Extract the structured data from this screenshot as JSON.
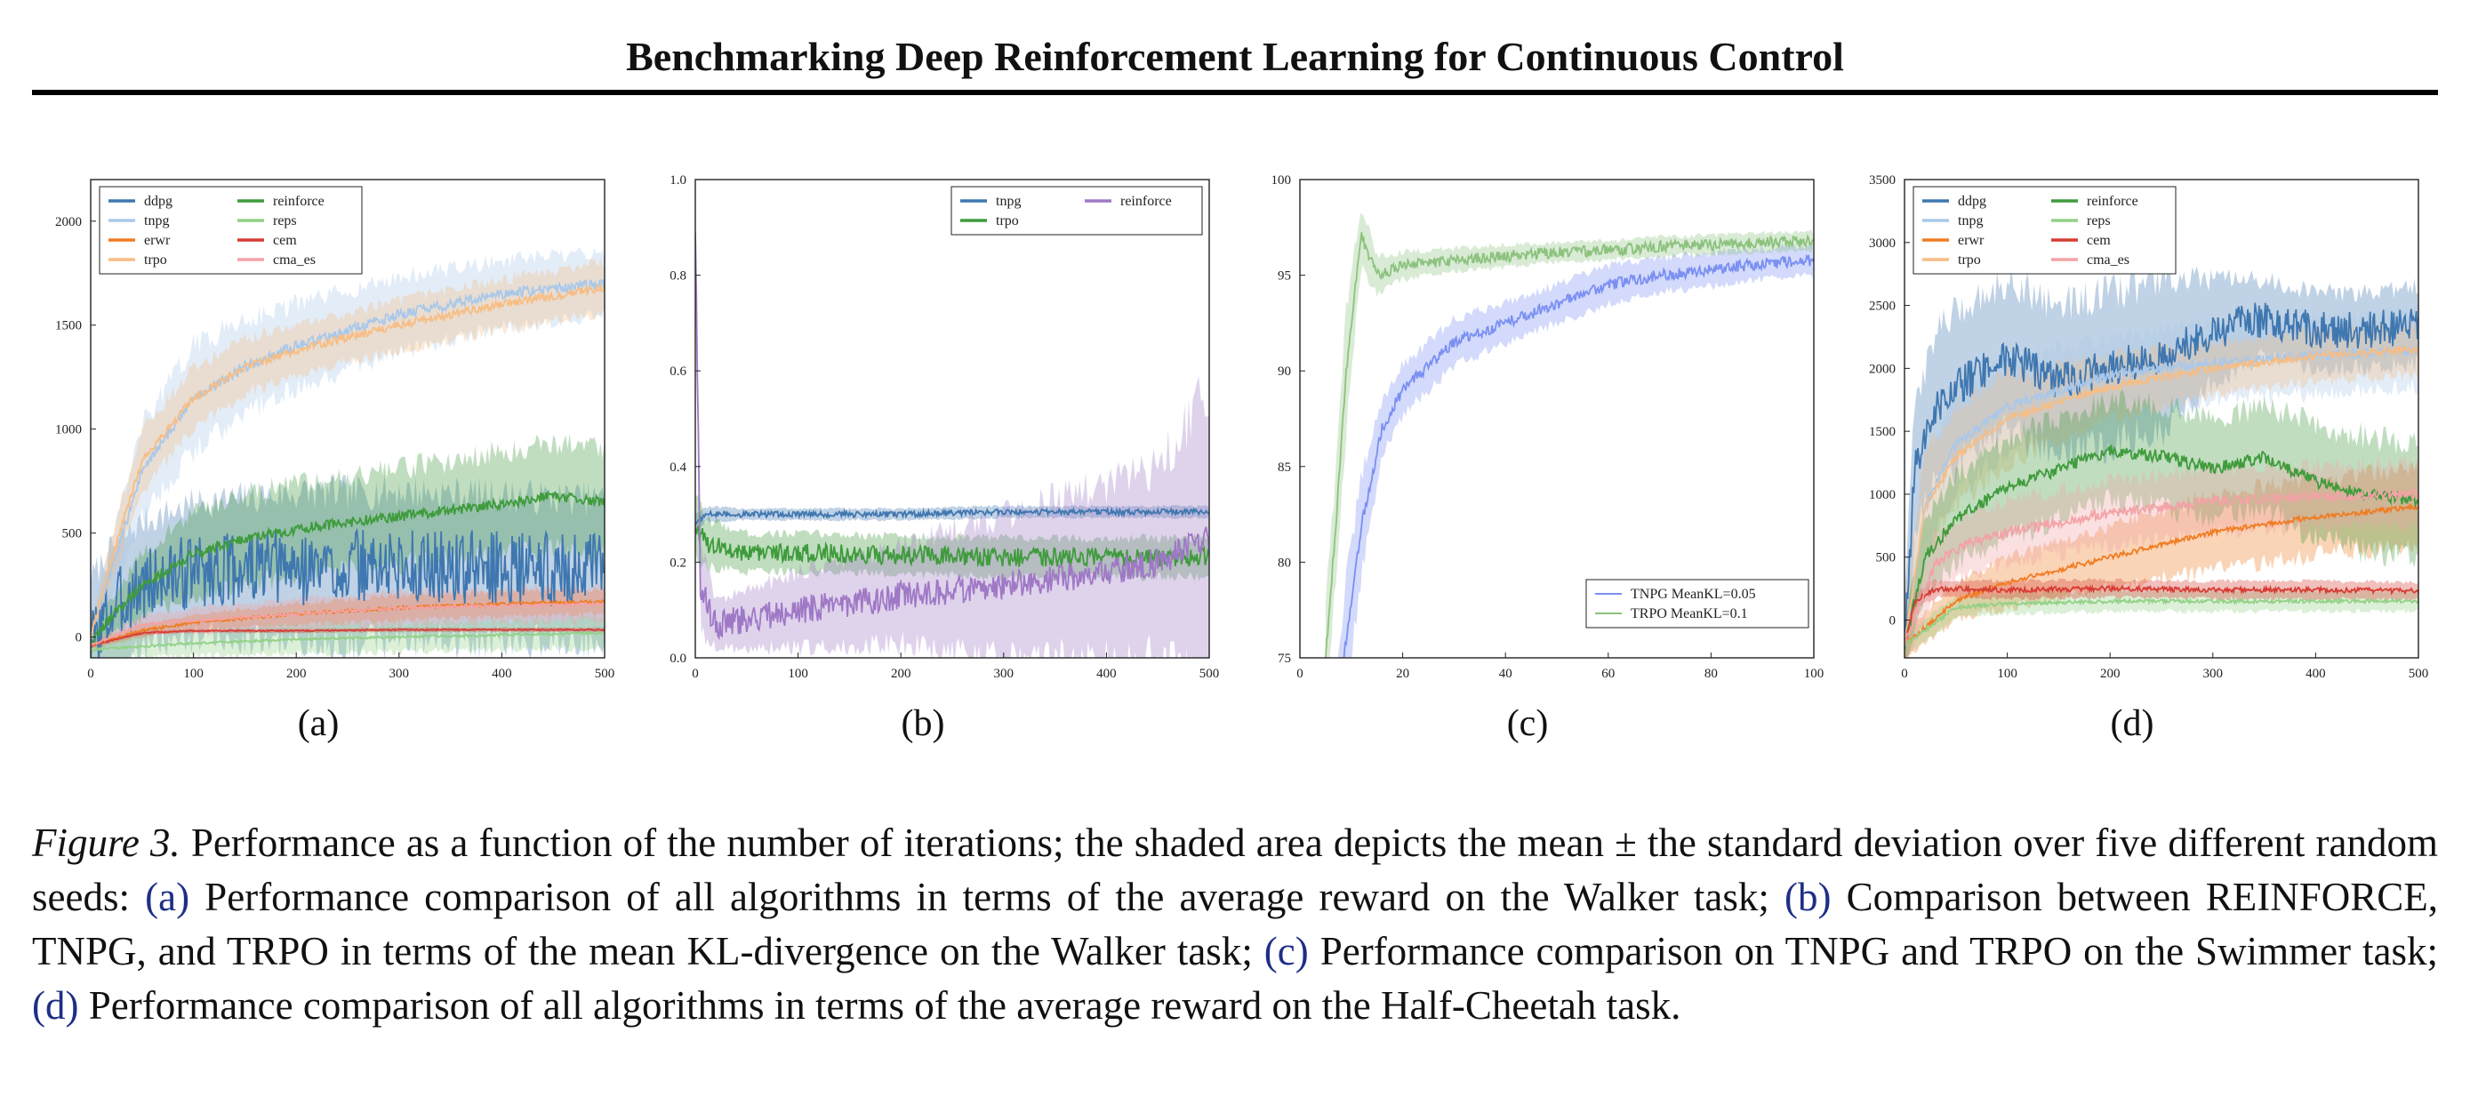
{
  "header": {
    "title": "Benchmarking Deep Reinforcement Learning for Continuous Control"
  },
  "colors": {
    "ddpg": "#3f77b0",
    "tnpg": "#a9c8ea",
    "erwr": "#f07c22",
    "trpo": "#f7bd83",
    "reinforce": "#3f9b3c",
    "reps": "#92d186",
    "cem": "#d63c34",
    "cma_es": "#f3a2a6",
    "reinforce_b": "#9f78c6",
    "tnpg_c": "#7a8ff2",
    "trpo_c": "#8cc27e"
  },
  "panels": [
    {
      "id": "a",
      "sublabel": "(a)"
    },
    {
      "id": "b",
      "sublabel": "(b)"
    },
    {
      "id": "c",
      "sublabel": "(c)"
    },
    {
      "id": "d",
      "sublabel": "(d)"
    }
  ],
  "caption": {
    "label": "Figure 3.",
    "text1": " Performance as a function of the number of iterations; the shaded area depicts the mean ± the standard deviation over five different random seeds: ",
    "ref_a": "(a)",
    "text2": " Performance comparison of all algorithms in terms of the average reward on the Walker task; ",
    "ref_b": "(b)",
    "text3": " Comparison between REINFORCE, TNPG, and TRPO in terms of the mean KL-divergence on the Walker task; ",
    "ref_c": "(c)",
    "text4": " Performance comparison on TNPG and TRPO on the Swimmer task; ",
    "ref_d": "(d)",
    "text5": " Performance comparison of all algorithms in terms of the average reward on the Half-Cheetah task."
  },
  "chart_data": [
    {
      "id": "a",
      "type": "line",
      "xlim": [
        0,
        500
      ],
      "ylim": [
        -100,
        2200
      ],
      "xticks": [
        "0",
        "100",
        "200",
        "300",
        "400",
        "500"
      ],
      "xtick_values": [
        0,
        100,
        200,
        300,
        400,
        500
      ],
      "yticks": [
        "0",
        "500",
        "1000",
        "1500",
        "2000"
      ],
      "ytick_values": [
        0,
        500,
        1000,
        1500,
        2000
      ],
      "legend": {
        "position": "top-left",
        "columns": 2,
        "entries": [
          "ddpg",
          "tnpg",
          "erwr",
          "trpo",
          "reinforce",
          "reps",
          "cem",
          "cma_es"
        ]
      },
      "series": [
        {
          "name": "ddpg",
          "color": "#3f77b0",
          "x": [
            0,
            25,
            50,
            100,
            150,
            200,
            300,
            400,
            500
          ],
          "y": [
            -20,
            150,
            250,
            320,
            330,
            330,
            340,
            330,
            320
          ],
          "band": [
            300,
            300,
            300,
            320,
            340,
            360,
            360,
            350,
            340
          ],
          "noise": 180
        },
        {
          "name": "tnpg",
          "color": "#a9c8ea",
          "x": [
            0,
            25,
            50,
            100,
            150,
            200,
            300,
            400,
            500
          ],
          "y": [
            0,
            400,
            800,
            1150,
            1300,
            1400,
            1550,
            1650,
            1700
          ],
          "band": [
            60,
            150,
            220,
            250,
            230,
            200,
            180,
            160,
            150
          ],
          "noise": 25
        },
        {
          "name": "erwr",
          "color": "#f07c22",
          "x": [
            0,
            50,
            100,
            200,
            300,
            400,
            500
          ],
          "y": [
            -40,
            30,
            70,
            110,
            140,
            160,
            170
          ],
          "band": [
            20,
            30,
            40,
            50,
            60,
            60,
            60
          ],
          "noise": 8
        },
        {
          "name": "trpo",
          "color": "#f7bd83",
          "x": [
            0,
            25,
            50,
            100,
            150,
            200,
            300,
            400,
            500
          ],
          "y": [
            0,
            450,
            850,
            1150,
            1300,
            1380,
            1500,
            1600,
            1680
          ],
          "band": [
            60,
            120,
            150,
            140,
            130,
            120,
            120,
            120,
            120
          ],
          "noise": 20
        },
        {
          "name": "reinforce",
          "color": "#3f9b3c",
          "x": [
            0,
            25,
            50,
            100,
            150,
            200,
            300,
            400,
            450,
            500
          ],
          "y": [
            -20,
            120,
            250,
            400,
            470,
            520,
            580,
            640,
            680,
            650
          ],
          "band": [
            40,
            100,
            150,
            200,
            220,
            220,
            230,
            250,
            260,
            260
          ],
          "noise": 25
        },
        {
          "name": "reps",
          "color": "#92d186",
          "x": [
            0,
            100,
            200,
            300,
            400,
            500
          ],
          "y": [
            -60,
            -30,
            -10,
            0,
            10,
            20
          ],
          "band": [
            40,
            60,
            70,
            70,
            70,
            70
          ],
          "noise": 6
        },
        {
          "name": "cem",
          "color": "#d63c34",
          "x": [
            0,
            50,
            100,
            200,
            300,
            400,
            500
          ],
          "y": [
            -40,
            20,
            30,
            30,
            35,
            35,
            35
          ],
          "band": [
            10,
            10,
            10,
            10,
            10,
            10,
            10
          ],
          "noise": 3
        },
        {
          "name": "cma_es",
          "color": "#f3a2a6",
          "x": [
            0,
            50,
            100,
            200,
            300,
            400,
            500
          ],
          "y": [
            -40,
            60,
            80,
            110,
            140,
            150,
            160
          ],
          "band": [
            20,
            40,
            60,
            70,
            80,
            80,
            80
          ],
          "noise": 6
        }
      ]
    },
    {
      "id": "b",
      "type": "line",
      "xlim": [
        0,
        500
      ],
      "ylim": [
        0,
        1.0
      ],
      "xticks": [
        "0",
        "100",
        "200",
        "300",
        "400",
        "500"
      ],
      "xtick_values": [
        0,
        100,
        200,
        300,
        400,
        500
      ],
      "yticks": [
        "0.0",
        "0.2",
        "0.4",
        "0.6",
        "0.8",
        "1.0"
      ],
      "ytick_values": [
        0,
        0.2,
        0.4,
        0.6,
        0.8,
        1.0
      ],
      "legend": {
        "position": "top-right",
        "columns": 2,
        "entries": [
          "tnpg",
          "trpo",
          "reinforce"
        ]
      },
      "series": [
        {
          "name": "tnpg",
          "color": "#3f77b0",
          "x": [
            0,
            10,
            50,
            100,
            200,
            300,
            400,
            500
          ],
          "y": [
            0.28,
            0.3,
            0.3,
            0.3,
            0.3,
            0.305,
            0.305,
            0.305
          ],
          "band": [
            0.02,
            0.015,
            0.012,
            0.012,
            0.012,
            0.012,
            0.012,
            0.012
          ],
          "noise": 0.006
        },
        {
          "name": "trpo",
          "color": "#3f9b3c",
          "x": [
            0,
            10,
            50,
            100,
            200,
            300,
            400,
            500
          ],
          "y": [
            0.28,
            0.24,
            0.22,
            0.22,
            0.215,
            0.21,
            0.21,
            0.21
          ],
          "band": [
            0.06,
            0.05,
            0.04,
            0.04,
            0.04,
            0.04,
            0.04,
            0.04
          ],
          "noise": 0.02
        },
        {
          "name": "reinforce",
          "color": "#9f78c6",
          "x": [
            0,
            5,
            20,
            50,
            100,
            200,
            300,
            400,
            450,
            500
          ],
          "y": [
            0.9,
            0.15,
            0.07,
            0.08,
            0.1,
            0.13,
            0.15,
            0.18,
            0.2,
            0.25
          ],
          "band": [
            0.1,
            0.1,
            0.05,
            0.06,
            0.08,
            0.1,
            0.15,
            0.18,
            0.2,
            0.3
          ],
          "noise": 0.03
        }
      ]
    },
    {
      "id": "c",
      "type": "line",
      "xlim": [
        0,
        100
      ],
      "ylim": [
        75,
        100
      ],
      "xticks": [
        "0",
        "20",
        "40",
        "60",
        "80",
        "100"
      ],
      "xtick_values": [
        0,
        20,
        40,
        60,
        80,
        100
      ],
      "yticks": [
        "75",
        "80",
        "85",
        "90",
        "95",
        "100"
      ],
      "ytick_values": [
        75,
        80,
        85,
        90,
        95,
        100
      ],
      "legend": {
        "position": "bottom-right",
        "columns": 1,
        "entries": [
          "TNPG MeanKL=0.05",
          "TRPO MeanKL=0.1"
        ]
      },
      "series": [
        {
          "name": "TNPG MeanKL=0.05",
          "color": "#7a8ff2",
          "x": [
            7,
            9,
            12,
            16,
            20,
            30,
            40,
            50,
            60,
            70,
            80,
            90,
            100
          ],
          "y": [
            72,
            76,
            82,
            87,
            89,
            91.5,
            92.5,
            93.5,
            94.5,
            95,
            95.3,
            95.6,
            95.8
          ],
          "band": [
            2,
            3,
            2.5,
            1.5,
            1.3,
            1.2,
            1.1,
            1,
            1,
            0.9,
            0.9,
            0.8,
            0.8
          ],
          "noise": 0.3
        },
        {
          "name": "TRPO MeanKL=0.1",
          "color": "#8cc27e",
          "x": [
            5,
            7,
            9,
            11,
            12,
            15,
            20,
            30,
            40,
            50,
            60,
            70,
            80,
            90,
            100
          ],
          "y": [
            75,
            82,
            90,
            95,
            97,
            95,
            95.5,
            95.8,
            96,
            96.2,
            96.3,
            96.5,
            96.6,
            96.7,
            96.8
          ],
          "band": [
            3,
            3,
            3,
            2,
            1.5,
            1,
            0.7,
            0.6,
            0.6,
            0.5,
            0.5,
            0.5,
            0.5,
            0.5,
            0.5
          ],
          "noise": 0.3
        }
      ]
    },
    {
      "id": "d",
      "type": "line",
      "xlim": [
        0,
        500
      ],
      "ylim": [
        -300,
        3500
      ],
      "xticks": [
        "0",
        "100",
        "200",
        "300",
        "400",
        "500"
      ],
      "xtick_values": [
        0,
        100,
        200,
        300,
        400,
        500
      ],
      "yticks": [
        "0",
        "500",
        "1000",
        "1500",
        "2000",
        "2500",
        "3000",
        "3500"
      ],
      "ytick_values": [
        0,
        500,
        1000,
        1500,
        2000,
        2500,
        3000,
        3500
      ],
      "legend": {
        "position": "top-left",
        "columns": 2,
        "entries": [
          "ddpg",
          "tnpg",
          "erwr",
          "trpo",
          "reinforce",
          "reps",
          "cem",
          "cma_es"
        ]
      },
      "series": [
        {
          "name": "ddpg",
          "color": "#3f77b0",
          "x": [
            0,
            10,
            30,
            60,
            100,
            150,
            200,
            250,
            300,
            350,
            400,
            450,
            500
          ],
          "y": [
            -200,
            1200,
            1700,
            1900,
            2100,
            1900,
            2000,
            2100,
            2300,
            2400,
            2300,
            2300,
            2350
          ],
          "band": [
            400,
            500,
            600,
            600,
            600,
            600,
            600,
            600,
            400,
            300,
            300,
            300,
            300
          ],
          "noise": 150
        },
        {
          "name": "tnpg",
          "color": "#a9c8ea",
          "x": [
            0,
            20,
            50,
            100,
            200,
            300,
            400,
            500
          ],
          "y": [
            -200,
            900,
            1400,
            1700,
            1950,
            2050,
            2100,
            2150
          ],
          "band": [
            300,
            400,
            400,
            350,
            300,
            300,
            300,
            300
          ],
          "noise": 40
        },
        {
          "name": "erwr",
          "color": "#f07c22",
          "x": [
            0,
            50,
            100,
            200,
            300,
            400,
            500
          ],
          "y": [
            -200,
            150,
            300,
            500,
            700,
            820,
            900
          ],
          "band": [
            100,
            150,
            200,
            250,
            300,
            300,
            300
          ],
          "noise": 20
        },
        {
          "name": "trpo",
          "color": "#f7bd83",
          "x": [
            0,
            20,
            50,
            100,
            200,
            300,
            400,
            500
          ],
          "y": [
            -200,
            900,
            1300,
            1600,
            1850,
            2000,
            2100,
            2150
          ],
          "band": [
            300,
            400,
            400,
            350,
            250,
            200,
            200,
            200
          ],
          "noise": 30
        },
        {
          "name": "reinforce",
          "color": "#3f9b3c",
          "x": [
            0,
            20,
            50,
            100,
            150,
            200,
            250,
            300,
            350,
            400,
            450,
            500
          ],
          "y": [
            -200,
            500,
            800,
            1050,
            1200,
            1350,
            1300,
            1200,
            1300,
            1100,
            1000,
            950
          ],
          "band": [
            200,
            300,
            350,
            400,
            400,
            400,
            400,
            400,
            400,
            450,
            450,
            450
          ],
          "noise": 50
        },
        {
          "name": "reps",
          "color": "#92d186",
          "x": [
            0,
            50,
            100,
            200,
            300,
            400,
            500
          ],
          "y": [
            -200,
            100,
            130,
            150,
            150,
            150,
            150
          ],
          "band": [
            100,
            80,
            80,
            80,
            80,
            80,
            80
          ],
          "noise": 15
        },
        {
          "name": "cem",
          "color": "#d63c34",
          "x": [
            0,
            10,
            30,
            100,
            200,
            300,
            400,
            500
          ],
          "y": [
            -200,
            150,
            250,
            240,
            250,
            240,
            240,
            230
          ],
          "band": [
            50,
            60,
            70,
            70,
            70,
            70,
            70,
            70
          ],
          "noise": 20
        },
        {
          "name": "cma_es",
          "color": "#f3a2a6",
          "x": [
            0,
            30,
            60,
            100,
            200,
            300,
            400,
            500
          ],
          "y": [
            -200,
            450,
            600,
            700,
            850,
            950,
            980,
            1000
          ],
          "band": [
            200,
            250,
            250,
            250,
            250,
            250,
            250,
            250
          ],
          "noise": 40
        }
      ]
    }
  ]
}
